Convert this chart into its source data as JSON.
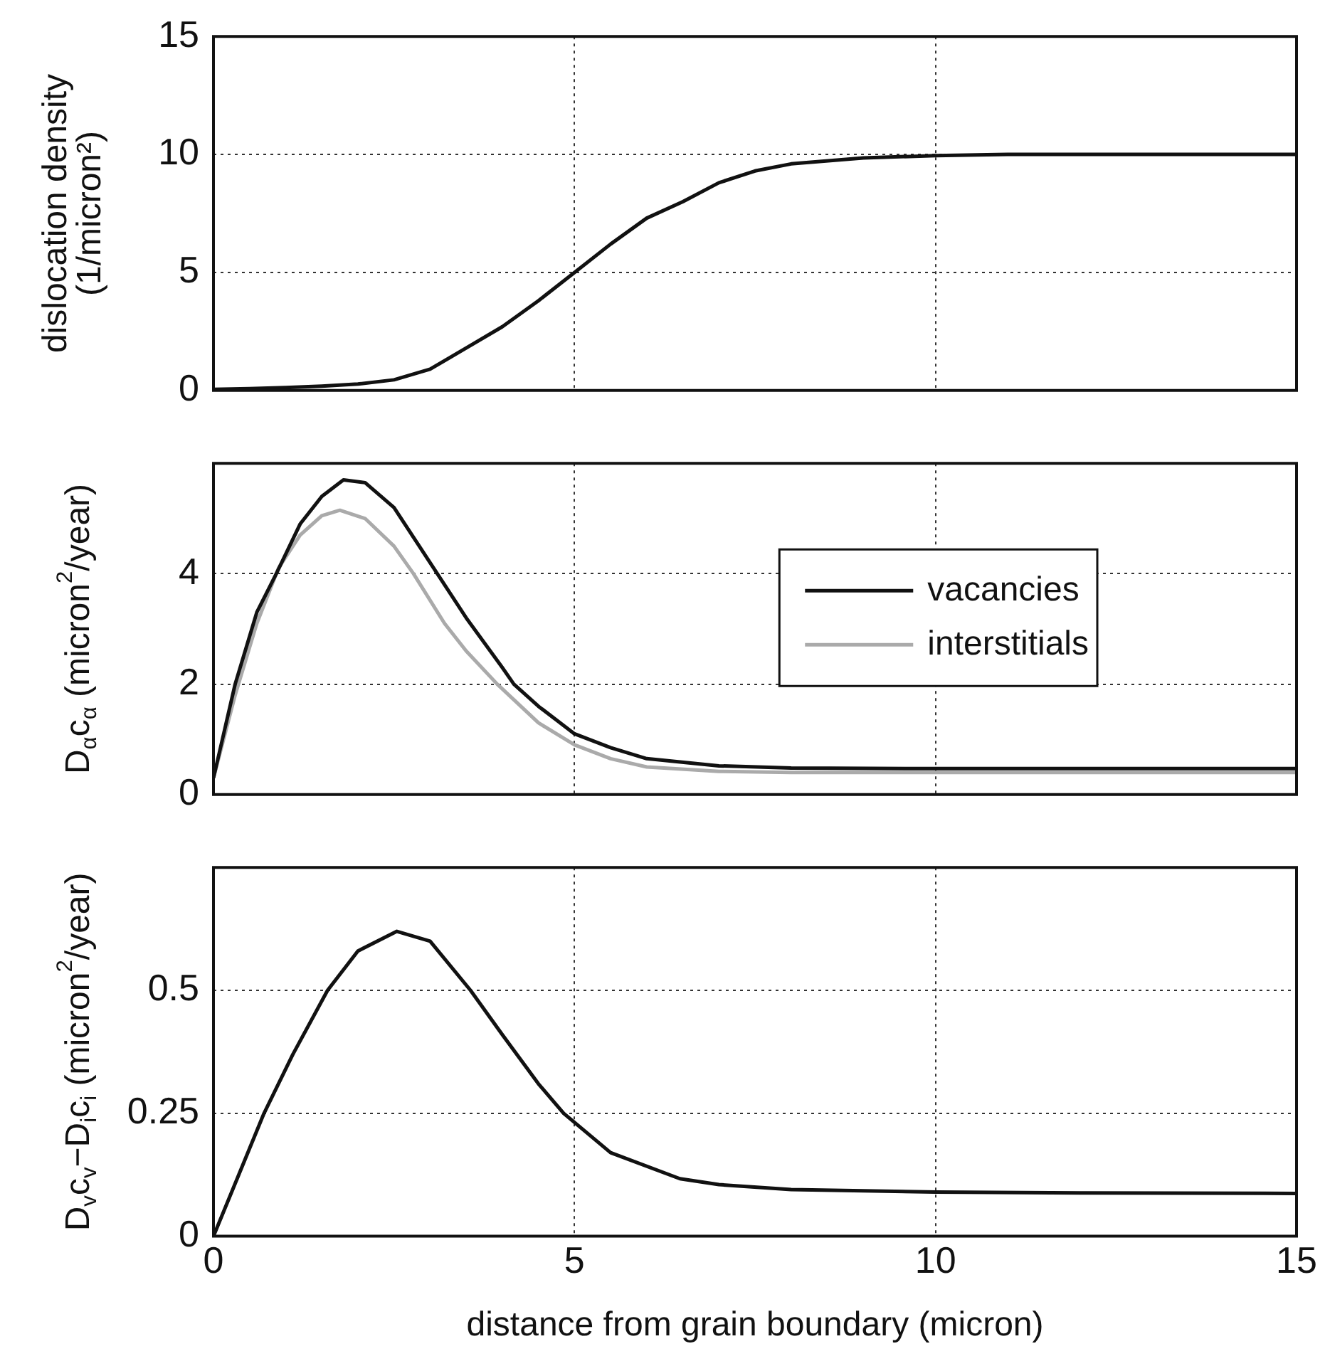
{
  "chart_data": [
    {
      "type": "line",
      "ylabel": "dislocation density\n(1/micron²)",
      "xlim": [
        0,
        15
      ],
      "xticks": [
        0,
        5,
        10,
        15
      ],
      "ylim": [
        0,
        15
      ],
      "yticks": [
        0,
        5,
        10,
        15
      ],
      "grid": true,
      "tick_labels": "y",
      "series": [
        {
          "color": "#111111",
          "x": [
            0,
            0.5,
            1,
            1.5,
            2,
            2.5,
            3,
            3.5,
            4,
            4.5,
            5,
            5.5,
            6,
            6.5,
            7,
            7.5,
            8,
            9,
            10,
            11,
            12,
            15
          ],
          "values": [
            0.05,
            0.08,
            0.12,
            0.18,
            0.27,
            0.45,
            0.9,
            1.8,
            2.7,
            3.8,
            5.0,
            6.2,
            7.3,
            8.0,
            8.8,
            9.3,
            9.6,
            9.85,
            9.95,
            10,
            10,
            10
          ]
        }
      ]
    },
    {
      "type": "line",
      "ylabel": "D$_{α}$c$_{α}$ (micron$^{2}$/year)",
      "xlim": [
        0,
        15
      ],
      "xticks": [
        0,
        5,
        10,
        15
      ],
      "ylim": [
        0,
        6
      ],
      "yticks": [
        0,
        2,
        4
      ],
      "grid": true,
      "tick_labels": "y",
      "legend": "right",
      "series": [
        {
          "name": "vacancies",
          "color": "#111111",
          "x": [
            0,
            0.3,
            0.6,
            0.87,
            1.2,
            1.5,
            1.8,
            2.1,
            2.5,
            3,
            3.5,
            4,
            4.16,
            4.5,
            5,
            5.5,
            6,
            7,
            8,
            10,
            15
          ],
          "values": [
            0.3,
            2.0,
            3.3,
            4.0,
            4.9,
            5.4,
            5.7,
            5.65,
            5.2,
            4.2,
            3.2,
            2.3,
            2.0,
            1.6,
            1.1,
            0.85,
            0.65,
            0.52,
            0.48,
            0.47,
            0.47
          ]
        },
        {
          "name": "interstitials",
          "color": "#aaaaaa",
          "x": [
            0,
            0.3,
            0.6,
            0.9,
            1.2,
            1.5,
            1.75,
            2.1,
            2.5,
            2.77,
            3.2,
            3.5,
            3.93,
            4.5,
            5,
            5.5,
            6,
            7,
            8,
            15
          ],
          "values": [
            0.3,
            1.8,
            3.1,
            4.1,
            4.7,
            5.05,
            5.15,
            5.0,
            4.5,
            4.0,
            3.1,
            2.6,
            2.0,
            1.3,
            0.9,
            0.65,
            0.5,
            0.42,
            0.4,
            0.4
          ]
        }
      ]
    },
    {
      "type": "line",
      "xlabel": "distance from grain boundary (micron)",
      "ylabel": "D$_{v}$c$_{v}$−D$_{i}$c$_{i}$ (micron$^{2}$/year)",
      "xlim": [
        0,
        15
      ],
      "xticks": [
        0,
        5,
        10,
        15
      ],
      "ylim": [
        0,
        0.75
      ],
      "yticks": [
        0,
        0.25,
        0.5
      ],
      "grid": true,
      "series": [
        {
          "color": "#111111",
          "x": [
            0,
            0.35,
            0.7,
            1.1,
            1.58,
            2,
            2.54,
            3,
            3.56,
            4,
            4.5,
            4.85,
            5.5,
            6.46,
            7,
            8,
            10,
            12,
            15
          ],
          "values": [
            0,
            0.125,
            0.25,
            0.37,
            0.5,
            0.58,
            0.62,
            0.6,
            0.5,
            0.41,
            0.31,
            0.25,
            0.17,
            0.117,
            0.105,
            0.095,
            0.09,
            0.088,
            0.087
          ]
        }
      ]
    }
  ]
}
